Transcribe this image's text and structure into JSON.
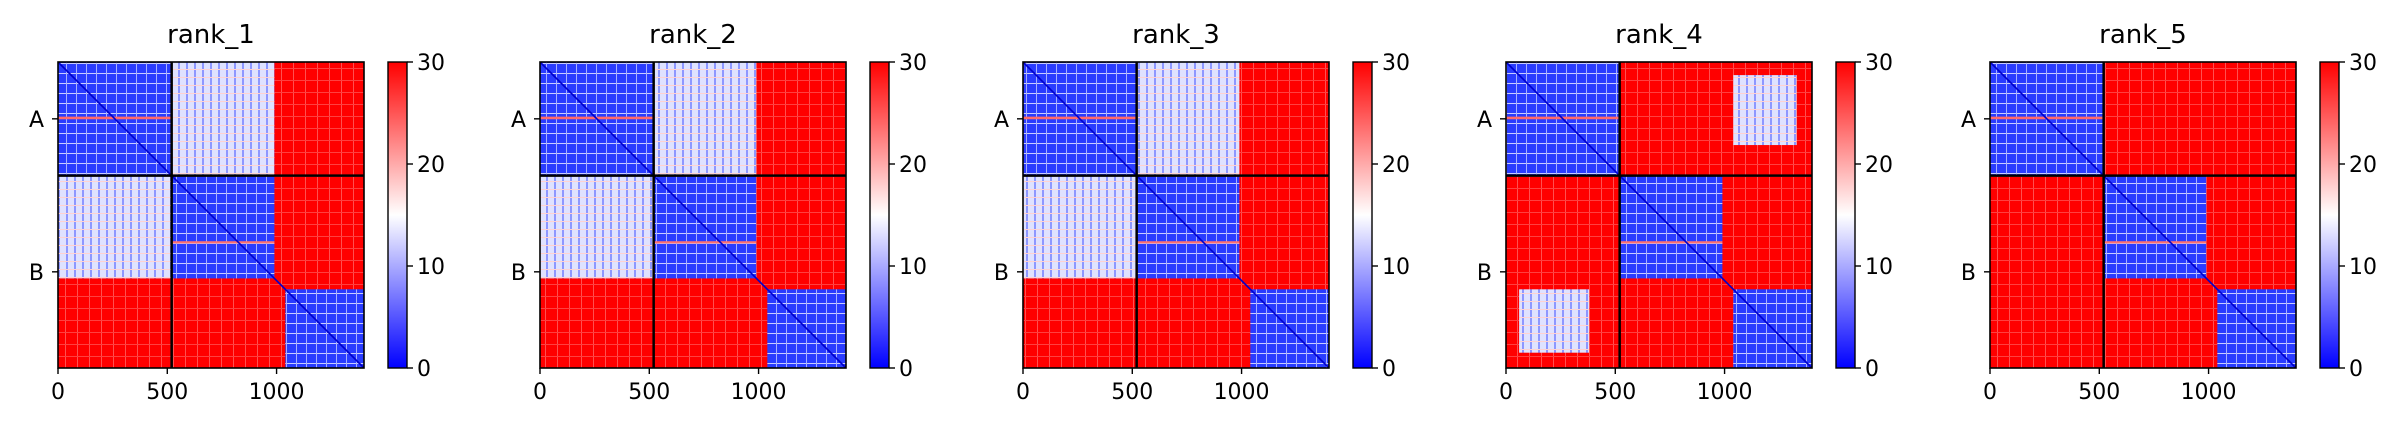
{
  "chart_data": {
    "type": "heatmap",
    "title": "",
    "colormap": {
      "name": "bwr",
      "low": "#0000ff",
      "mid": "#ffffff",
      "high": "#ff0000"
    },
    "clim": [
      0,
      30
    ],
    "colorbar_ticks": [
      "0",
      "10",
      "20",
      "30"
    ],
    "x_ticks": [
      "0",
      "500",
      "1000"
    ],
    "x_tick_values": [
      0,
      500,
      1000
    ],
    "xlim": [
      0,
      1400
    ],
    "chain_labels": [
      "A",
      "B"
    ],
    "chain_boundary": 520,
    "panels": [
      {
        "title": "rank_1"
      },
      {
        "title": "rank_2"
      },
      {
        "title": "rank_3"
      },
      {
        "title": "rank_4"
      },
      {
        "title": "rank_5"
      }
    ]
  }
}
